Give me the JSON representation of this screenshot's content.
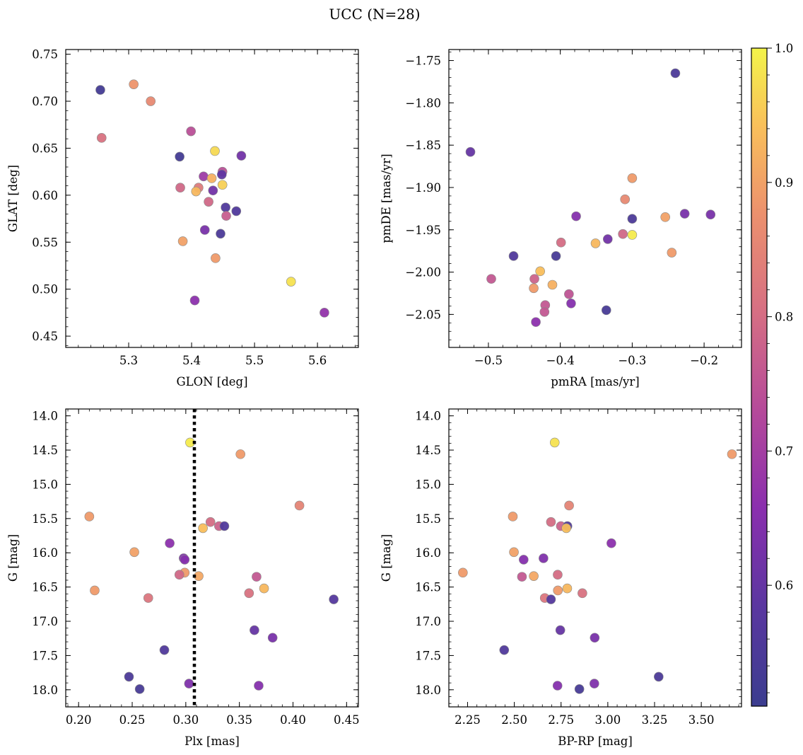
{
  "title": "UCC (N=28)",
  "colorbar": {
    "cmap": "plasma",
    "min": 0.51,
    "max": 1.0,
    "ticks": [
      "0.6",
      "0.7",
      "0.8",
      "0.9",
      "1.0"
    ]
  },
  "chart_data": [
    {
      "type": "scatter",
      "xlabel": "GLON [deg]",
      "ylabel": "GLAT [deg]",
      "xlim": [
        5.2,
        5.665
      ],
      "ylim": [
        0.438,
        0.755
      ],
      "xticks": [
        "5.3",
        "5.4",
        "5.5",
        "5.6"
      ],
      "yticks": [
        "0.45",
        "0.50",
        "0.55",
        "0.60",
        "0.65",
        "0.70",
        "0.75"
      ],
      "points": [
        {
          "x": 5.255,
          "y": 0.712,
          "p": 0.53
        },
        {
          "x": 5.308,
          "y": 0.718,
          "p": 0.88
        },
        {
          "x": 5.335,
          "y": 0.7,
          "p": 0.86
        },
        {
          "x": 5.257,
          "y": 0.661,
          "p": 0.81
        },
        {
          "x": 5.399,
          "y": 0.668,
          "p": 0.74
        },
        {
          "x": 5.381,
          "y": 0.641,
          "p": 0.53
        },
        {
          "x": 5.437,
          "y": 0.647,
          "p": 0.97
        },
        {
          "x": 5.479,
          "y": 0.642,
          "p": 0.62
        },
        {
          "x": 5.449,
          "y": 0.625,
          "p": 0.74
        },
        {
          "x": 5.448,
          "y": 0.622,
          "p": 0.59
        },
        {
          "x": 5.419,
          "y": 0.62,
          "p": 0.69
        },
        {
          "x": 5.432,
          "y": 0.618,
          "p": 0.92
        },
        {
          "x": 5.449,
          "y": 0.611,
          "p": 0.96
        },
        {
          "x": 5.382,
          "y": 0.608,
          "p": 0.79
        },
        {
          "x": 5.411,
          "y": 0.608,
          "p": 0.83
        },
        {
          "x": 5.434,
          "y": 0.605,
          "p": 0.62
        },
        {
          "x": 5.407,
          "y": 0.604,
          "p": 0.93
        },
        {
          "x": 5.427,
          "y": 0.593,
          "p": 0.79
        },
        {
          "x": 5.454,
          "y": 0.587,
          "p": 0.56
        },
        {
          "x": 5.471,
          "y": 0.583,
          "p": 0.56
        },
        {
          "x": 5.455,
          "y": 0.578,
          "p": 0.77
        },
        {
          "x": 5.421,
          "y": 0.563,
          "p": 0.63
        },
        {
          "x": 5.446,
          "y": 0.559,
          "p": 0.55
        },
        {
          "x": 5.386,
          "y": 0.551,
          "p": 0.9
        },
        {
          "x": 5.438,
          "y": 0.533,
          "p": 0.89
        },
        {
          "x": 5.558,
          "y": 0.508,
          "p": 0.98
        },
        {
          "x": 5.405,
          "y": 0.488,
          "p": 0.66
        },
        {
          "x": 5.611,
          "y": 0.475,
          "p": 0.67
        }
      ]
    },
    {
      "type": "scatter",
      "xlabel": "pmRA [mas/yr]",
      "ylabel": "pmDE [mas/yr]",
      "xlim": [
        -0.555,
        -0.148
      ],
      "ylim": [
        -2.089,
        -1.737
      ],
      "xticks": [
        "−0.5",
        "−0.4",
        "−0.3",
        "−0.2"
      ],
      "yticks": [
        "−2.05",
        "−2.00",
        "−1.95",
        "−1.90",
        "−1.85",
        "−1.80",
        "−1.75"
      ],
      "points": [
        {
          "x": -0.24,
          "y": -1.765,
          "p": 0.55
        },
        {
          "x": -0.525,
          "y": -1.858,
          "p": 0.6
        },
        {
          "x": -0.3,
          "y": -1.889,
          "p": 0.89
        },
        {
          "x": -0.31,
          "y": -1.914,
          "p": 0.86
        },
        {
          "x": -0.254,
          "y": -1.935,
          "p": 0.9
        },
        {
          "x": -0.227,
          "y": -1.931,
          "p": 0.63
        },
        {
          "x": -0.191,
          "y": -1.932,
          "p": 0.63
        },
        {
          "x": -0.378,
          "y": -1.934,
          "p": 0.65
        },
        {
          "x": -0.3,
          "y": -1.937,
          "p": 0.55
        },
        {
          "x": -0.313,
          "y": -1.955,
          "p": 0.79
        },
        {
          "x": -0.3,
          "y": -1.956,
          "p": 0.99
        },
        {
          "x": -0.334,
          "y": -1.961,
          "p": 0.62
        },
        {
          "x": -0.351,
          "y": -1.966,
          "p": 0.93
        },
        {
          "x": -0.399,
          "y": -1.965,
          "p": 0.8
        },
        {
          "x": -0.245,
          "y": -1.977,
          "p": 0.89
        },
        {
          "x": -0.465,
          "y": -1.981,
          "p": 0.56
        },
        {
          "x": -0.406,
          "y": -1.981,
          "p": 0.54
        },
        {
          "x": -0.428,
          "y": -1.999,
          "p": 0.94
        },
        {
          "x": -0.496,
          "y": -2.008,
          "p": 0.76
        },
        {
          "x": -0.436,
          "y": -2.008,
          "p": 0.78
        },
        {
          "x": -0.411,
          "y": -2.015,
          "p": 0.92
        },
        {
          "x": -0.437,
          "y": -2.019,
          "p": 0.89
        },
        {
          "x": -0.388,
          "y": -2.026,
          "p": 0.75
        },
        {
          "x": -0.385,
          "y": -2.037,
          "p": 0.65
        },
        {
          "x": -0.421,
          "y": -2.039,
          "p": 0.76
        },
        {
          "x": -0.422,
          "y": -2.047,
          "p": 0.76
        },
        {
          "x": -0.336,
          "y": -2.045,
          "p": 0.54
        },
        {
          "x": -0.434,
          "y": -2.059,
          "p": 0.66
        }
      ]
    },
    {
      "type": "scatter",
      "xlabel": "Plx [mas]",
      "ylabel": "G [mag]",
      "xlim": [
        0.188,
        0.461
      ],
      "ylim": [
        18.25,
        13.9
      ],
      "y_inverted": true,
      "xticks": [
        "0.20",
        "0.25",
        "0.30",
        "0.35",
        "0.40",
        "0.45"
      ],
      "yticks": [
        "14.0",
        "14.5",
        "15.0",
        "15.5",
        "16.0",
        "16.5",
        "17.0",
        "17.5",
        "18.0"
      ],
      "vline": 0.308,
      "points": [
        {
          "x": 0.304,
          "y": 14.39,
          "p": 0.99
        },
        {
          "x": 0.351,
          "y": 14.56,
          "p": 0.89
        },
        {
          "x": 0.406,
          "y": 15.31,
          "p": 0.85
        },
        {
          "x": 0.21,
          "y": 15.47,
          "p": 0.89
        },
        {
          "x": 0.323,
          "y": 15.55,
          "p": 0.8
        },
        {
          "x": 0.331,
          "y": 15.61,
          "p": 0.78
        },
        {
          "x": 0.336,
          "y": 15.61,
          "p": 0.56
        },
        {
          "x": 0.316,
          "y": 15.64,
          "p": 0.94
        },
        {
          "x": 0.285,
          "y": 15.86,
          "p": 0.66
        },
        {
          "x": 0.252,
          "y": 15.99,
          "p": 0.9
        },
        {
          "x": 0.298,
          "y": 16.08,
          "p": 0.64
        },
        {
          "x": 0.299,
          "y": 16.1,
          "p": 0.65
        },
        {
          "x": 0.299,
          "y": 16.29,
          "p": 0.89
        },
        {
          "x": 0.294,
          "y": 16.32,
          "p": 0.79
        },
        {
          "x": 0.312,
          "y": 16.34,
          "p": 0.91
        },
        {
          "x": 0.366,
          "y": 16.35,
          "p": 0.76
        },
        {
          "x": 0.373,
          "y": 16.52,
          "p": 0.93
        },
        {
          "x": 0.215,
          "y": 16.55,
          "p": 0.89
        },
        {
          "x": 0.359,
          "y": 16.59,
          "p": 0.81
        },
        {
          "x": 0.265,
          "y": 16.66,
          "p": 0.82
        },
        {
          "x": 0.438,
          "y": 16.68,
          "p": 0.57
        },
        {
          "x": 0.364,
          "y": 17.13,
          "p": 0.6
        },
        {
          "x": 0.381,
          "y": 17.24,
          "p": 0.63
        },
        {
          "x": 0.28,
          "y": 17.42,
          "p": 0.56
        },
        {
          "x": 0.247,
          "y": 17.81,
          "p": 0.55
        },
        {
          "x": 0.303,
          "y": 17.91,
          "p": 0.64
        },
        {
          "x": 0.368,
          "y": 17.94,
          "p": 0.65
        },
        {
          "x": 0.257,
          "y": 17.99,
          "p": 0.54
        }
      ]
    },
    {
      "type": "scatter",
      "xlabel": "BP-RP [mag]",
      "ylabel": "G [mag]",
      "xlim": [
        2.15,
        3.715
      ],
      "ylim": [
        18.25,
        13.9
      ],
      "y_inverted": true,
      "xticks": [
        "2.25",
        "2.50",
        "2.75",
        "3.00",
        "3.25",
        "3.50"
      ],
      "yticks": [
        "14.0",
        "14.5",
        "15.0",
        "15.5",
        "16.0",
        "16.5",
        "17.0",
        "17.5",
        "18.0"
      ],
      "points": [
        {
          "x": 2.716,
          "y": 14.39,
          "p": 0.98
        },
        {
          "x": 3.664,
          "y": 14.56,
          "p": 0.89
        },
        {
          "x": 2.793,
          "y": 15.31,
          "p": 0.85
        },
        {
          "x": 2.492,
          "y": 15.47,
          "p": 0.89
        },
        {
          "x": 2.696,
          "y": 15.55,
          "p": 0.8
        },
        {
          "x": 2.749,
          "y": 15.61,
          "p": 0.78
        },
        {
          "x": 2.784,
          "y": 15.61,
          "p": 0.56
        },
        {
          "x": 2.778,
          "y": 15.64,
          "p": 0.94
        },
        {
          "x": 3.019,
          "y": 15.86,
          "p": 0.66
        },
        {
          "x": 2.498,
          "y": 15.99,
          "p": 0.9
        },
        {
          "x": 2.656,
          "y": 16.08,
          "p": 0.64
        },
        {
          "x": 2.55,
          "y": 16.1,
          "p": 0.65
        },
        {
          "x": 2.225,
          "y": 16.29,
          "p": 0.89
        },
        {
          "x": 2.732,
          "y": 16.32,
          "p": 0.8
        },
        {
          "x": 2.604,
          "y": 16.34,
          "p": 0.91
        },
        {
          "x": 2.541,
          "y": 16.35,
          "p": 0.76
        },
        {
          "x": 2.783,
          "y": 16.52,
          "p": 0.93
        },
        {
          "x": 2.733,
          "y": 16.55,
          "p": 0.89
        },
        {
          "x": 2.864,
          "y": 16.59,
          "p": 0.81
        },
        {
          "x": 2.663,
          "y": 16.66,
          "p": 0.82
        },
        {
          "x": 2.696,
          "y": 16.68,
          "p": 0.57
        },
        {
          "x": 2.746,
          "y": 17.13,
          "p": 0.6
        },
        {
          "x": 2.93,
          "y": 17.24,
          "p": 0.63
        },
        {
          "x": 2.446,
          "y": 17.42,
          "p": 0.56
        },
        {
          "x": 3.272,
          "y": 17.81,
          "p": 0.55
        },
        {
          "x": 2.928,
          "y": 17.91,
          "p": 0.64
        },
        {
          "x": 2.731,
          "y": 17.94,
          "p": 0.65
        },
        {
          "x": 2.848,
          "y": 17.99,
          "p": 0.54
        }
      ]
    }
  ]
}
